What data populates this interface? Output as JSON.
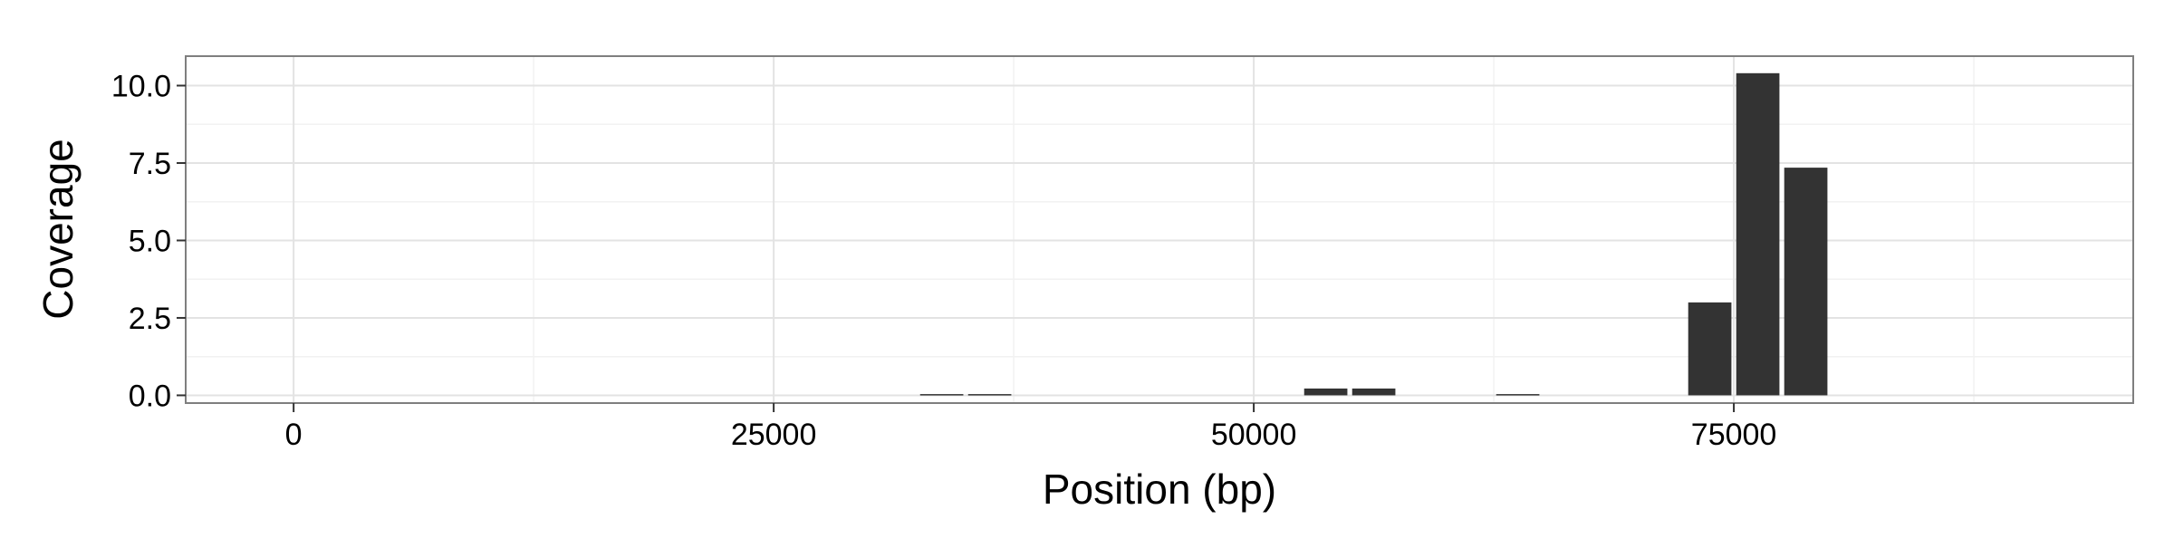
{
  "chart_data": {
    "type": "bar",
    "title": "",
    "xlabel": "Position (bp)",
    "ylabel": "Coverage",
    "xlim": [
      -5620,
      95800
    ],
    "ylim": [
      -0.25,
      10.95
    ],
    "xticks": [
      0,
      25000,
      50000,
      75000
    ],
    "yticks": [
      0.0,
      2.5,
      5.0,
      7.5,
      10.0
    ],
    "xtick_labels": [
      "0",
      "25000",
      "50000",
      "75000"
    ],
    "ytick_labels": [
      "0.0",
      "2.5",
      "5.0",
      "7.5",
      "10.0"
    ],
    "grid": true,
    "legend": "none",
    "bar_width": 2250,
    "bar_color": "#333333",
    "bars": [
      {
        "x": 33750,
        "y": 0.04
      },
      {
        "x": 36250,
        "y": 0.04
      },
      {
        "x": 53750,
        "y": 0.22
      },
      {
        "x": 56250,
        "y": 0.22
      },
      {
        "x": 63750,
        "y": 0.04
      },
      {
        "x": 73750,
        "y": 3.0
      },
      {
        "x": 76250,
        "y": 10.4
      },
      {
        "x": 78750,
        "y": 7.35
      }
    ]
  }
}
